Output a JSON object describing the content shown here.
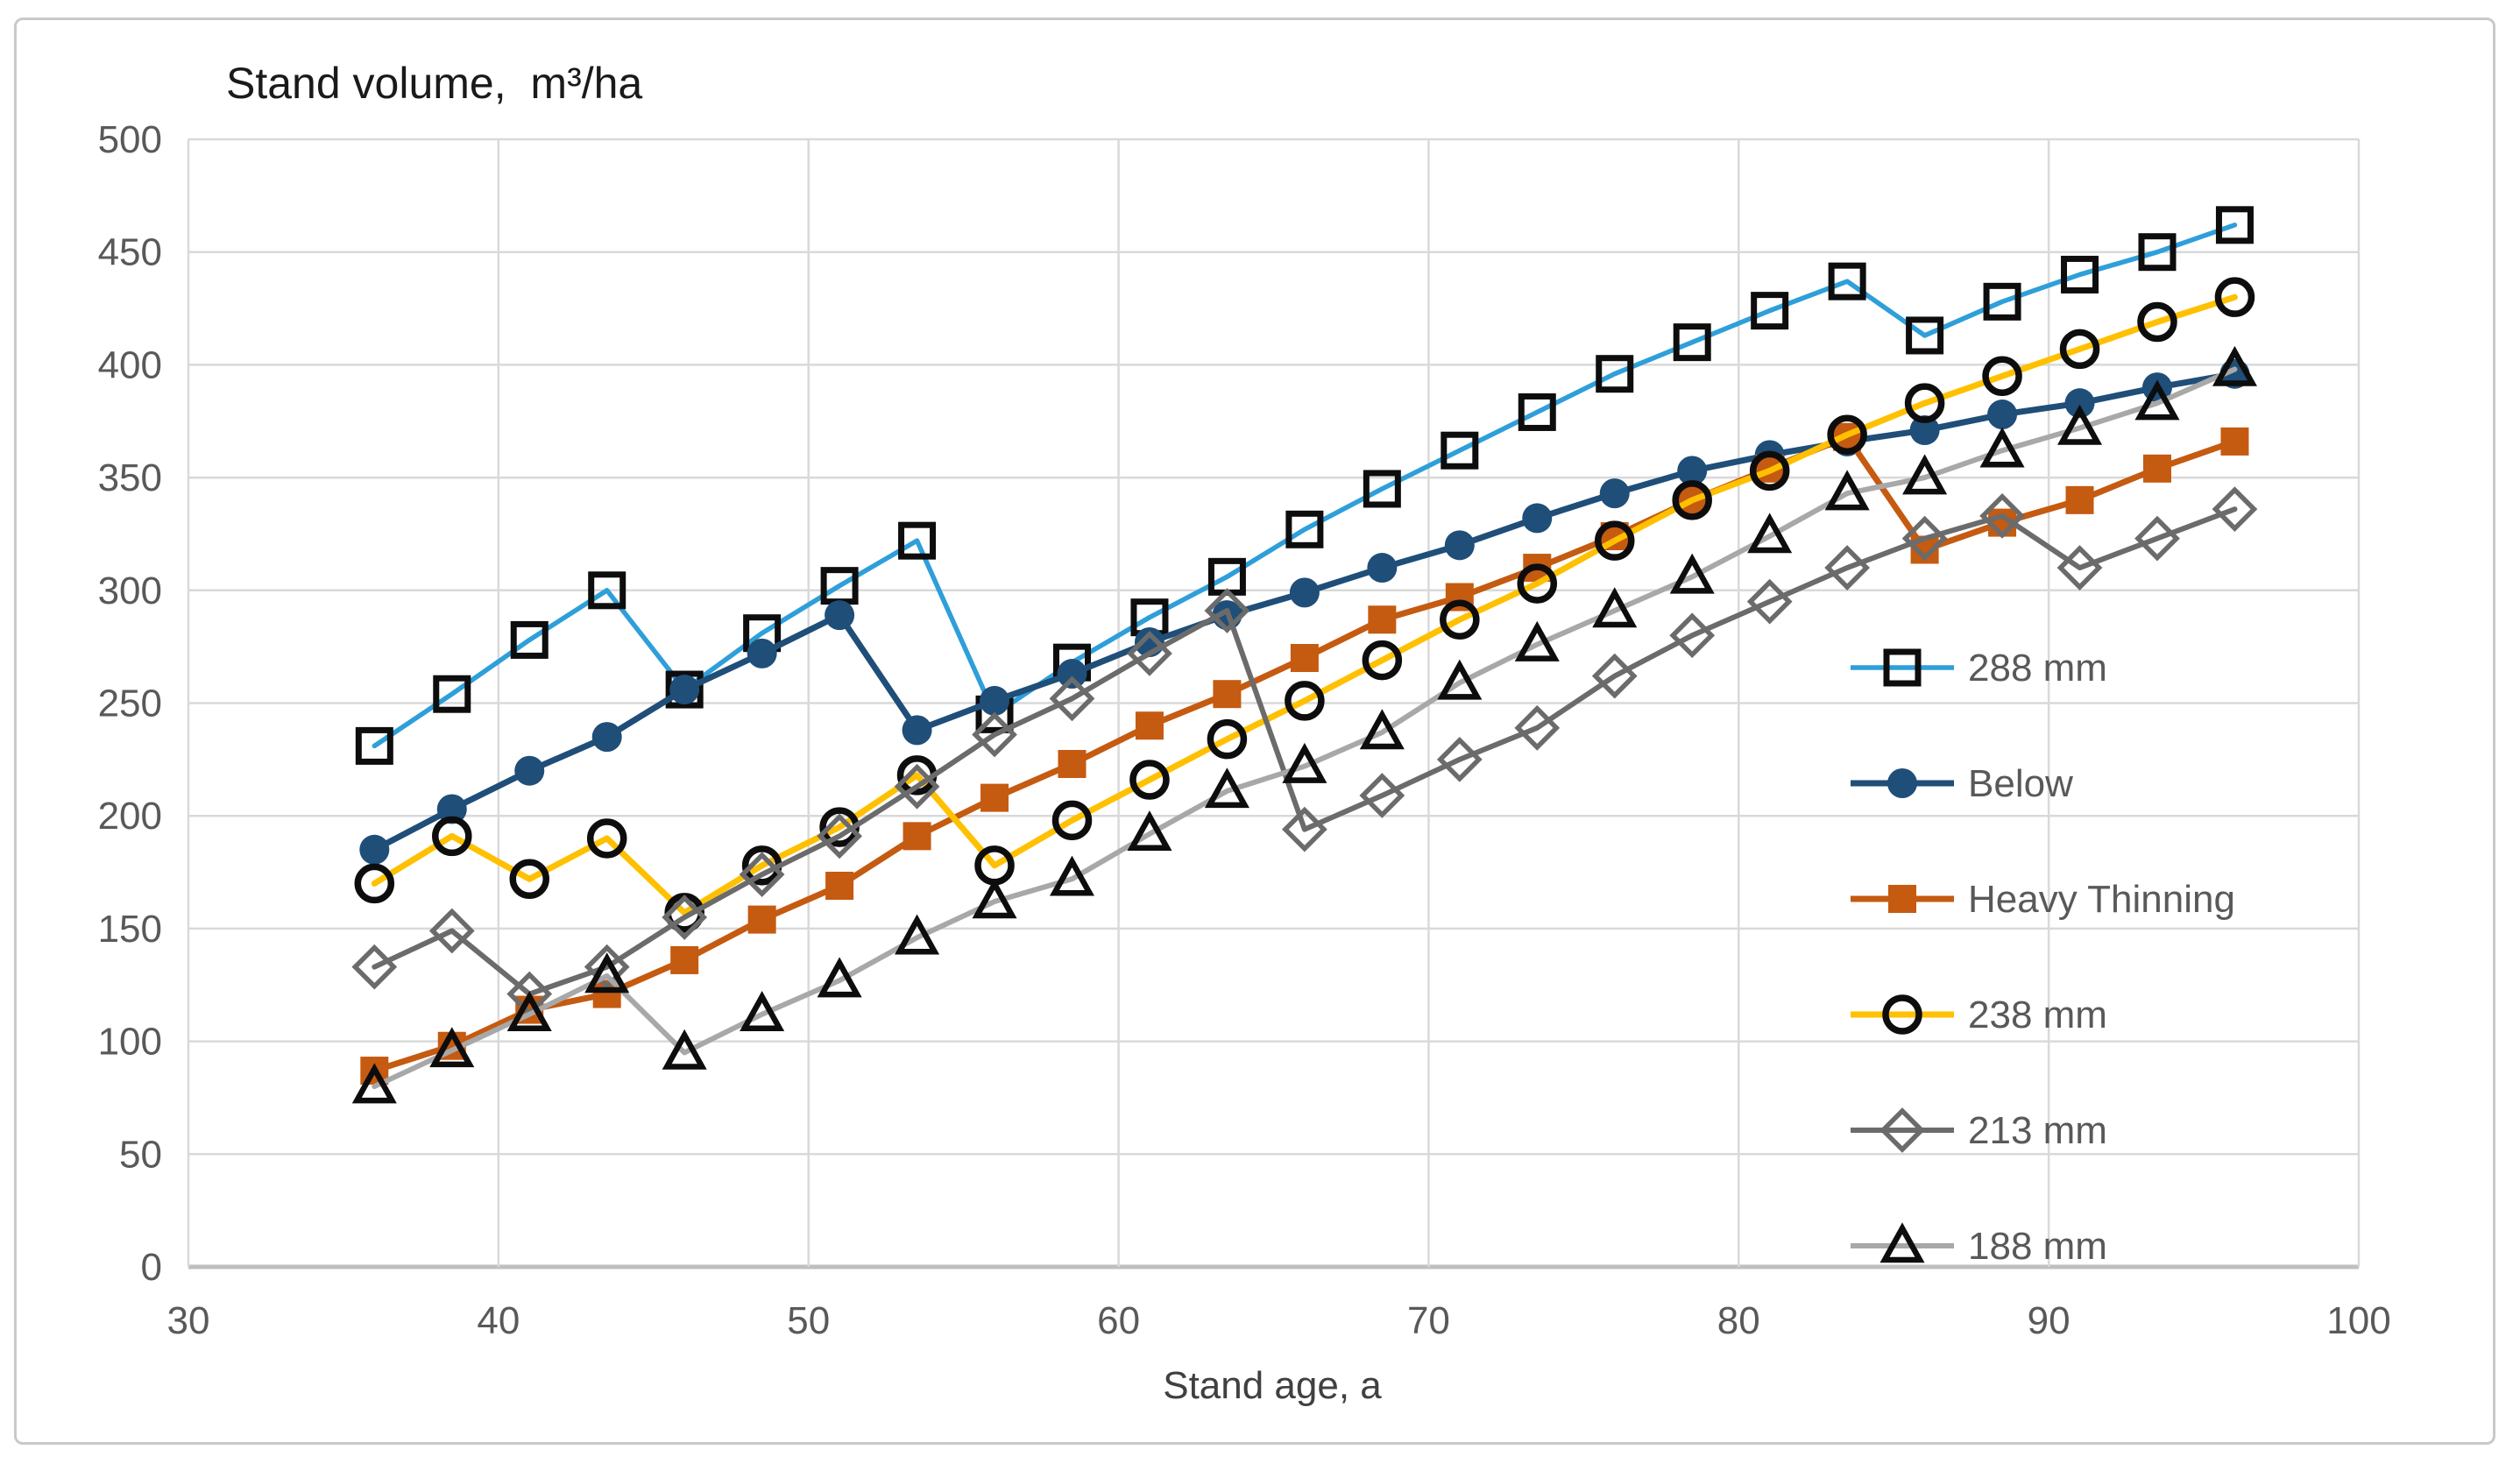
{
  "title": "Stand volume,  m³/ha",
  "x_axis": {
    "label": "Stand age, a",
    "ticks": [
      30,
      40,
      50,
      60,
      70,
      80,
      90,
      100
    ]
  },
  "y_axis": {
    "ticks": [
      0,
      50,
      100,
      150,
      200,
      250,
      300,
      350,
      400,
      450,
      500
    ]
  },
  "colors": {
    "gridline": "#d9d9d9",
    "axis_line": "#bfbfbf",
    "tick_text": "#595959",
    "title_text": "#1a1a1a",
    "legend_text": "#595959",
    "border": "#c9c9c9",
    "series_288": "#2e9fd9",
    "series_below": "#1f4e79",
    "series_heavy": "#c55a11",
    "series_238": "#ffc000",
    "series_213": "#6b6b6b",
    "series_188": "#a8a8a8"
  },
  "chart_data": {
    "type": "line",
    "title": "Stand volume,  m³/ha",
    "xlabel": "Stand age, a",
    "ylabel": "Stand volume, m³/ha",
    "xlim": [
      30,
      100
    ],
    "ylim": [
      0,
      500
    ],
    "grid": true,
    "legend_position": "inside-right",
    "x": [
      36,
      38.5,
      41,
      43.5,
      46,
      48.5,
      51,
      53.5,
      56,
      58.5,
      61,
      63.5,
      66,
      68.5,
      71,
      73.5,
      76,
      78.5,
      81,
      83.5,
      86,
      88.5,
      91,
      93.5,
      96
    ],
    "series": [
      {
        "name": "288 mm",
        "color": "#2e9fd9",
        "marker": "open-square",
        "marker_color": "#0d0d0d",
        "values": [
          231,
          254,
          278,
          300,
          256,
          281,
          302,
          322,
          245,
          268,
          288,
          306,
          327,
          345,
          362,
          379,
          396,
          410,
          424,
          437,
          413,
          428,
          440,
          450,
          462
        ]
      },
      {
        "name": "Below",
        "color": "#1f4e79",
        "marker": "filled-circle",
        "marker_color": "#1f4e79",
        "values": [
          185,
          203,
          220,
          235,
          256,
          272,
          289,
          238,
          251,
          263,
          277,
          289,
          299,
          310,
          320,
          332,
          343,
          353,
          360,
          366,
          371,
          378,
          383,
          390,
          396
        ]
      },
      {
        "name": "Heavy Thinning",
        "color": "#c55a11",
        "marker": "filled-square",
        "marker_color": "#c55a11",
        "values": [
          87,
          98,
          114,
          121,
          136,
          154,
          169,
          191,
          208,
          223,
          240,
          254,
          270,
          287,
          297,
          310,
          324,
          340,
          354,
          368,
          318,
          330,
          340,
          354,
          366
        ]
      },
      {
        "name": "238 mm",
        "color": "#ffc000",
        "marker": "open-circle",
        "marker_color": "#0d0d0d",
        "values": [
          170,
          191,
          172,
          190,
          157,
          178,
          195,
          218,
          178,
          198,
          216,
          234,
          251,
          269,
          287,
          303,
          322,
          340,
          353,
          369,
          383,
          395,
          407,
          419,
          430
        ]
      },
      {
        "name": "213 mm",
        "color": "#6b6b6b",
        "marker": "open-diamond",
        "marker_color": "#6b6b6b",
        "values": [
          133,
          149,
          121,
          133,
          155,
          174,
          191,
          213,
          236,
          252,
          272,
          291,
          194,
          209,
          225,
          239,
          262,
          280,
          295,
          310,
          323,
          333,
          310,
          323,
          336
        ]
      },
      {
        "name": "188 mm",
        "color": "#a8a8a8",
        "marker": "open-triangle",
        "marker_color": "#0d0d0d",
        "values": [
          80,
          96,
          112,
          129,
          95,
          112,
          127,
          146,
          162,
          172,
          192,
          211,
          222,
          237,
          259,
          276,
          291,
          306,
          324,
          343,
          350,
          362,
          372,
          383,
          398
        ]
      }
    ]
  }
}
